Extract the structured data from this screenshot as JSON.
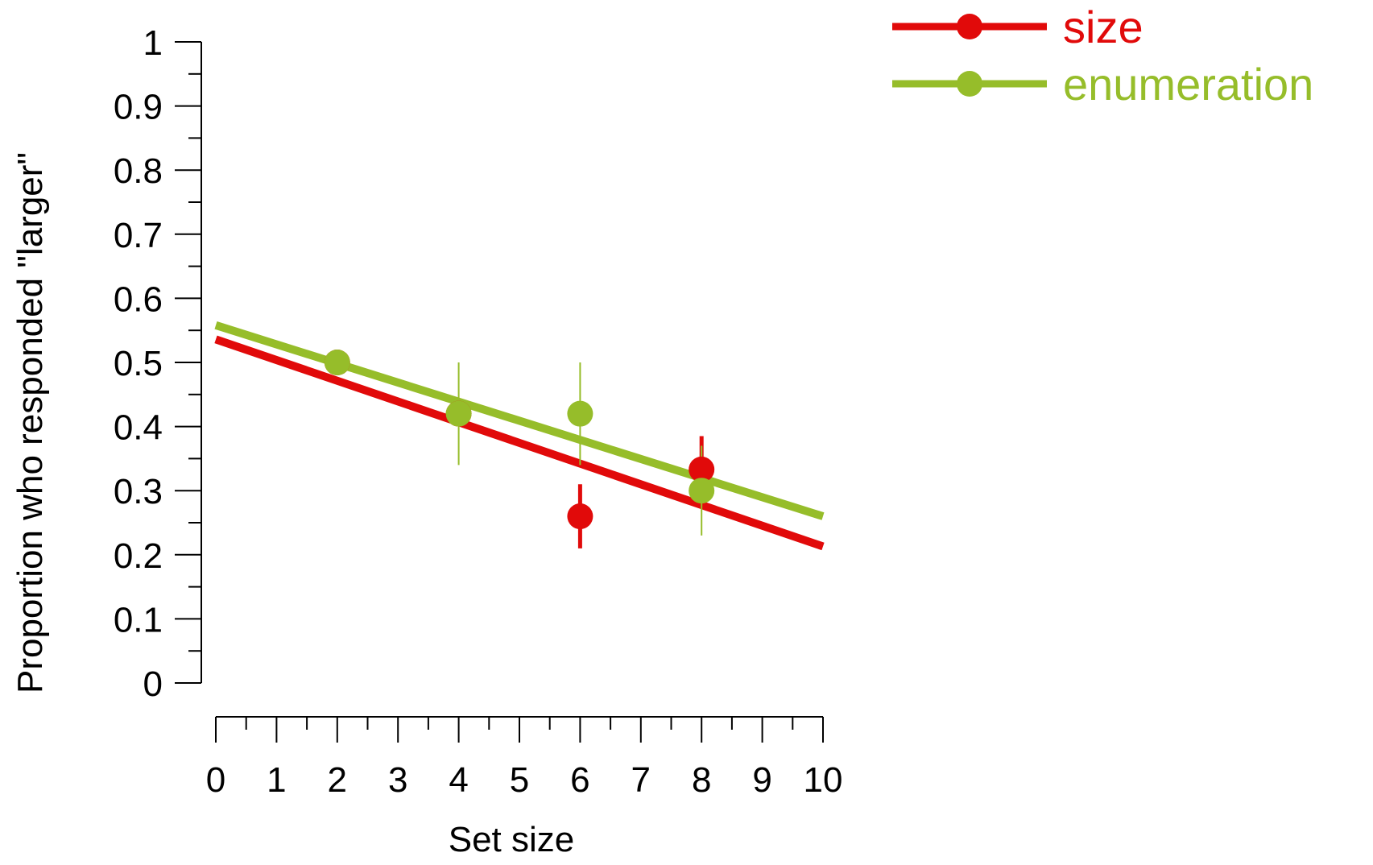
{
  "chart_data": {
    "type": "line",
    "xlabel": "Set size",
    "ylabel": "Proportion who responded \"larger\"",
    "xlim": [
      0,
      10
    ],
    "ylim": [
      0,
      1
    ],
    "x_ticks": [
      "0",
      "1",
      "2",
      "3",
      "4",
      "5",
      "6",
      "7",
      "8",
      "9",
      "10"
    ],
    "y_ticks": [
      "0",
      "0.1",
      "0.2",
      "0.3",
      "0.4",
      "0.5",
      "0.6",
      "0.7",
      "0.8",
      "0.9",
      "1"
    ],
    "legend_position": "top-right",
    "grid": false,
    "series": [
      {
        "name": "size",
        "color": "#e10a0a",
        "points": [
          {
            "x": 2,
            "y": 0.5,
            "err_low": 0.5,
            "err_high": 0.5
          },
          {
            "x": 4,
            "y": 0.42,
            "err_low": 0.42,
            "err_high": 0.42
          },
          {
            "x": 6,
            "y": 0.26,
            "err_low": 0.21,
            "err_high": 0.31
          },
          {
            "x": 8,
            "y": 0.333,
            "err_low": 0.3,
            "err_high": 0.385
          }
        ],
        "fit": {
          "x": [
            0,
            10
          ],
          "y": [
            0.536,
            0.213
          ]
        }
      },
      {
        "name": "enumeration",
        "color": "#96bd2a",
        "points": [
          {
            "x": 2,
            "y": 0.5,
            "err_low": 0.5,
            "err_high": 0.5
          },
          {
            "x": 4,
            "y": 0.42,
            "err_low": 0.34,
            "err_high": 0.5
          },
          {
            "x": 6,
            "y": 0.42,
            "err_low": 0.34,
            "err_high": 0.5
          },
          {
            "x": 8,
            "y": 0.3,
            "err_low": 0.23,
            "err_high": 0.37
          }
        ],
        "fit": {
          "x": [
            0,
            10
          ],
          "y": [
            0.558,
            0.26
          ]
        }
      }
    ]
  }
}
